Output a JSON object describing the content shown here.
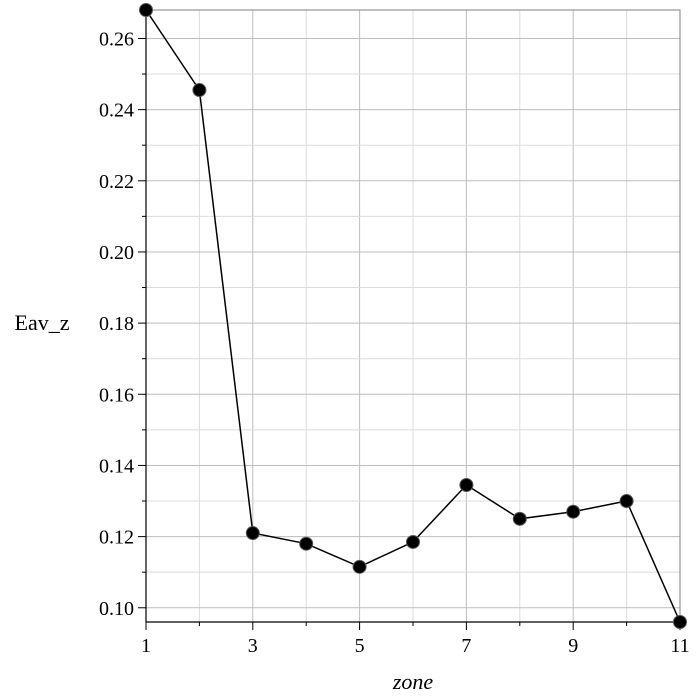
{
  "chart_data": {
    "type": "line",
    "xlabel": "zone",
    "ylabel": "Eav_z",
    "xlim": [
      1,
      11
    ],
    "ylim": [
      0.096,
      0.268
    ],
    "x_ticks": [
      1,
      3,
      5,
      7,
      9,
      11
    ],
    "x_tick_labels": [
      "1",
      "3",
      "5",
      "7",
      "9",
      "11"
    ],
    "y_ticks": [
      0.1,
      0.12,
      0.14,
      0.16,
      0.18,
      0.2,
      0.22,
      0.24,
      0.26
    ],
    "y_tick_labels": [
      "0.10",
      "0.12",
      "0.14",
      "0.16",
      "0.18",
      "0.20",
      "0.22",
      "0.24",
      "0.26"
    ],
    "grid": true,
    "series": [
      {
        "x": [
          1,
          2,
          3,
          4,
          5,
          6,
          7,
          8,
          9,
          10,
          11
        ],
        "values": [
          0.268,
          0.2455,
          0.121,
          0.118,
          0.1115,
          0.1185,
          0.1345,
          0.125,
          0.127,
          0.13,
          0.096
        ]
      }
    ],
    "colors": {
      "line": "#000000",
      "marker": "#000000",
      "grid": "#c8c8c8",
      "frame": "#808080"
    }
  }
}
